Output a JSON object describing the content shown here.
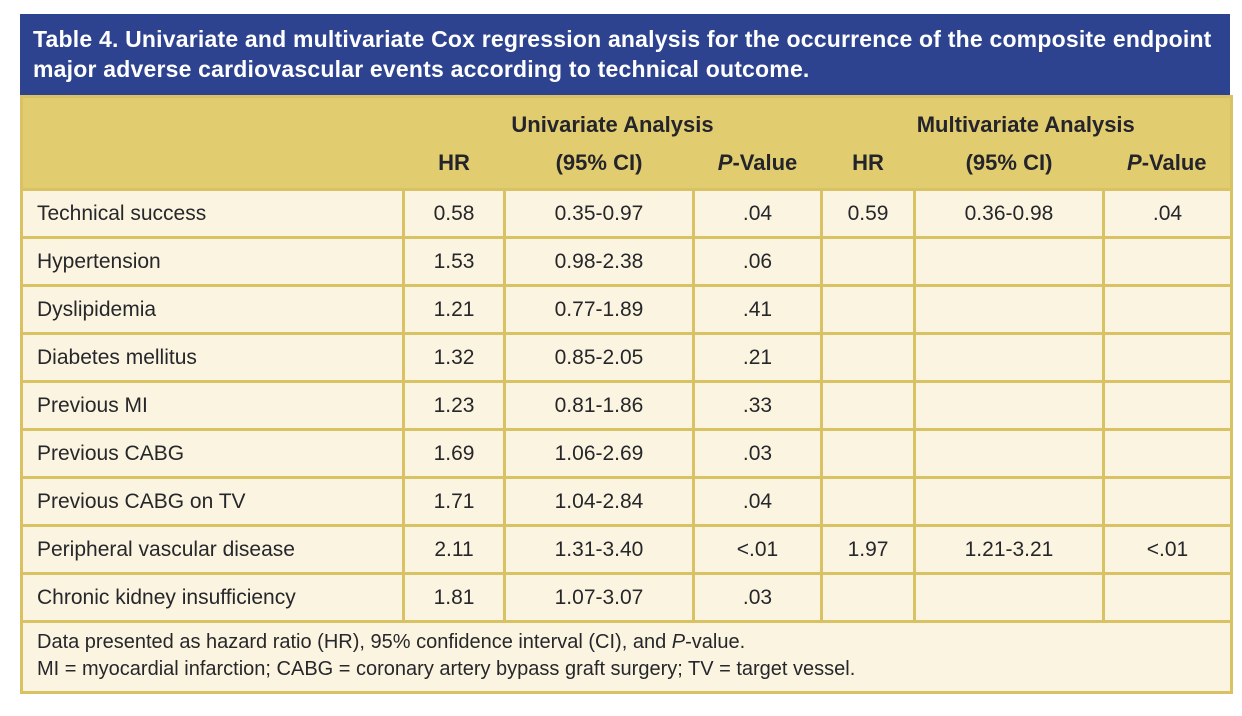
{
  "title": "Table 4. Univariate and multivariate Cox regression analysis for the occurrence of the composite endpoint major adverse cardiovascular events according to technical outcome.",
  "colors": {
    "title_bar": "#2d4390",
    "header_band": "#e2cc70",
    "row_background": "#fbf4e0",
    "grid_border": "#d9c263",
    "title_text": "#ffffff",
    "body_text": "#26272b"
  },
  "header": {
    "univariate_group": "Univariate Analysis",
    "multivariate_group": "Multivariate Analysis",
    "hr": "HR",
    "ci": "(95% CI)",
    "p_italic": "P",
    "p_rest": "-Value"
  },
  "rows": [
    {
      "label": "Technical success",
      "u_hr": "0.58",
      "u_ci": "0.35-0.97",
      "u_p": ".04",
      "m_hr": "0.59",
      "m_ci": "0.36-0.98",
      "m_p": ".04"
    },
    {
      "label": "Hypertension",
      "u_hr": "1.53",
      "u_ci": "0.98-2.38",
      "u_p": ".06",
      "m_hr": "",
      "m_ci": "",
      "m_p": ""
    },
    {
      "label": "Dyslipidemia",
      "u_hr": "1.21",
      "u_ci": "0.77-1.89",
      "u_p": ".41",
      "m_hr": "",
      "m_ci": "",
      "m_p": ""
    },
    {
      "label": "Diabetes mellitus",
      "u_hr": "1.32",
      "u_ci": "0.85-2.05",
      "u_p": ".21",
      "m_hr": "",
      "m_ci": "",
      "m_p": ""
    },
    {
      "label": "Previous MI",
      "u_hr": "1.23",
      "u_ci": "0.81-1.86",
      "u_p": ".33",
      "m_hr": "",
      "m_ci": "",
      "m_p": ""
    },
    {
      "label": "Previous CABG",
      "u_hr": "1.69",
      "u_ci": "1.06-2.69",
      "u_p": ".03",
      "m_hr": "",
      "m_ci": "",
      "m_p": ""
    },
    {
      "label": "Previous CABG on TV",
      "u_hr": "1.71",
      "u_ci": "1.04-2.84",
      "u_p": ".04",
      "m_hr": "",
      "m_ci": "",
      "m_p": ""
    },
    {
      "label": "Peripheral vascular disease",
      "u_hr": "2.11",
      "u_ci": "1.31-3.40",
      "u_p": "<.01",
      "m_hr": "1.97",
      "m_ci": "1.21-3.21",
      "m_p": "<.01"
    },
    {
      "label": "Chronic kidney insufficiency",
      "u_hr": "1.81",
      "u_ci": "1.07-3.07",
      "u_p": ".03",
      "m_hr": "",
      "m_ci": "",
      "m_p": ""
    }
  ],
  "footnotes": {
    "line1_pre": "Data presented as hazard ratio (HR), 95% confidence interval (CI), and ",
    "line1_italic": "P",
    "line1_post": "-value.",
    "line2": "MI = myocardial infarction; CABG = coronary artery bypass graft surgery; TV = target vessel."
  }
}
